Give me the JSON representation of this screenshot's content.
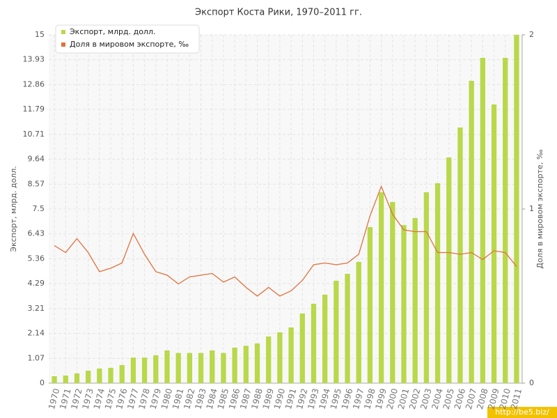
{
  "chart_data": {
    "type": "combo",
    "title": "Экспорт Коста Рики, 1970–2011 гг.",
    "y_label": "Экспорт, млрд. долл.",
    "y2_label": "Доля в мировом экспорте, ‰",
    "watermark": "http://be5.biz/",
    "categories": [
      "1970",
      "1971",
      "1972",
      "1973",
      "1974",
      "1975",
      "1976",
      "1977",
      "1978",
      "1979",
      "1980",
      "1981",
      "1982",
      "1983",
      "1984",
      "1985",
      "1986",
      "1987",
      "1988",
      "1989",
      "1990",
      "1991",
      "1992",
      "1993",
      "1994",
      "1995",
      "1996",
      "1997",
      "1998",
      "1999",
      "2000",
      "2001",
      "2002",
      "2003",
      "2004",
      "2005",
      "2006",
      "2007",
      "2008",
      "2009",
      "2010",
      "2011"
    ],
    "series": [
      {
        "name": "Экспорт, млрд. долл.",
        "type": "bar",
        "color": "#b9d84a",
        "values": [
          0.3,
          0.33,
          0.42,
          0.54,
          0.63,
          0.66,
          0.78,
          1.1,
          1.1,
          1.2,
          1.41,
          1.3,
          1.3,
          1.3,
          1.41,
          1.3,
          1.53,
          1.61,
          1.71,
          2.01,
          2.19,
          2.4,
          3.0,
          3.42,
          3.81,
          4.41,
          4.71,
          5.22,
          6.72,
          8.22,
          7.8,
          6.81,
          7.11,
          8.22,
          8.61,
          9.72,
          11.01,
          13.02,
          14.01,
          12.0,
          14.01,
          15.0
        ]
      },
      {
        "name": "Доля в мировом экспорте, ‰",
        "type": "line",
        "axis": "y2",
        "color": "#e0703a",
        "values": [
          0.79,
          0.75,
          0.83,
          0.75,
          0.64,
          0.66,
          0.69,
          0.86,
          0.74,
          0.64,
          0.62,
          0.57,
          0.61,
          0.62,
          0.63,
          0.58,
          0.61,
          0.55,
          0.5,
          0.55,
          0.5,
          0.53,
          0.59,
          0.68,
          0.69,
          0.68,
          0.69,
          0.74,
          0.96,
          1.13,
          0.97,
          0.88,
          0.87,
          0.87,
          0.75,
          0.75,
          0.74,
          0.75,
          0.71,
          0.76,
          0.75,
          0.67
        ]
      }
    ],
    "ylim": [
      0,
      15
    ],
    "yticks": [
      0,
      1.07,
      2.14,
      3.21,
      4.29,
      5.36,
      6.43,
      7.5,
      8.57,
      9.64,
      10.71,
      11.79,
      12.86,
      13.93,
      15
    ],
    "y2lim": [
      0,
      2
    ],
    "y2ticks": [
      0,
      1,
      2
    ],
    "grid": true,
    "legend": "top-left"
  }
}
